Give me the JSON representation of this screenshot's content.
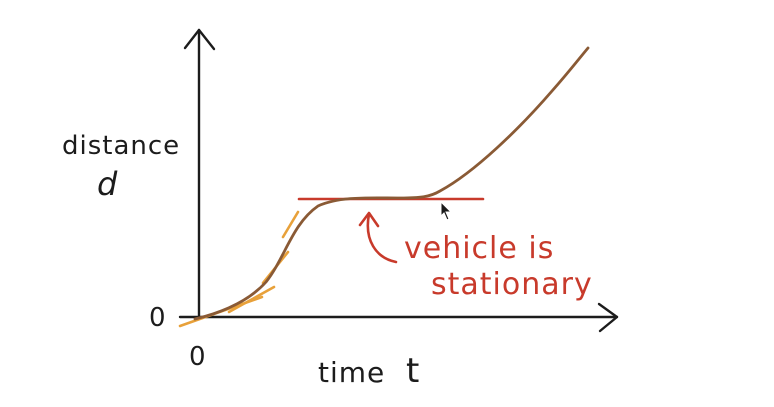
{
  "labels": {
    "y_axis_line1": "distance",
    "y_axis_line2": "d",
    "y_origin": "0",
    "x_origin": "0",
    "x_axis_time": "time",
    "x_axis_var": "t",
    "annotation_line1": "vehicle is",
    "annotation_line2": "stationary"
  },
  "colors": {
    "axis": "#1c1c1c",
    "curve": "#8a5a35",
    "tangent_orange": "#e8a13a",
    "annotation_red": "#c83a2b"
  },
  "icons": {
    "cursor": "mouse-pointer-icon"
  }
}
